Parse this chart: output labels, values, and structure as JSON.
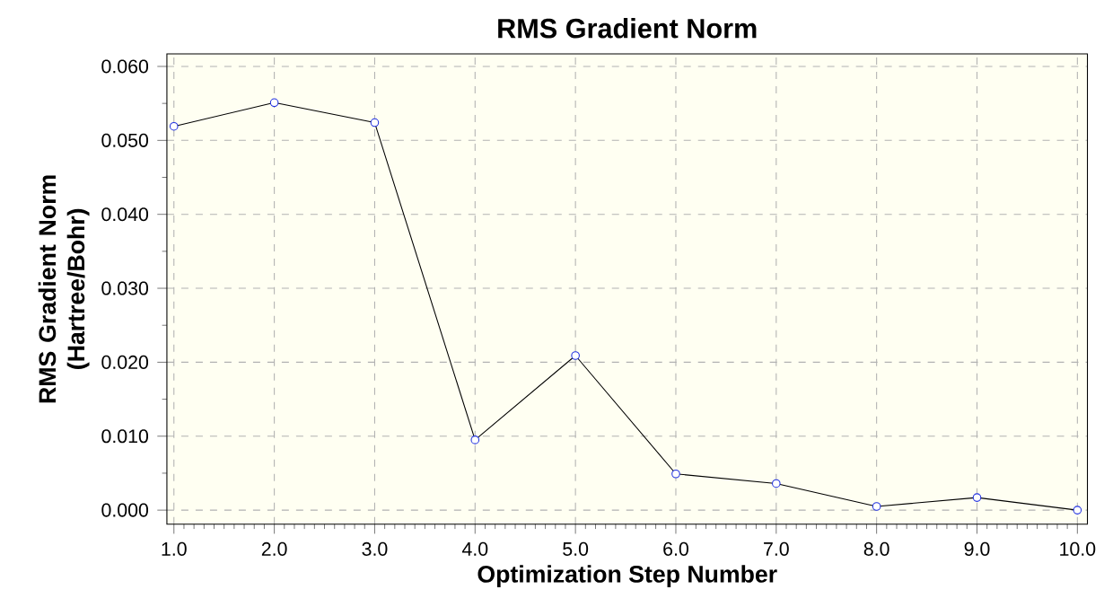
{
  "chart_data": {
    "type": "line",
    "title": "RMS Gradient Norm",
    "xlabel": "Optimization Step Number",
    "ylabel": "RMS Gradient Norm (Hartree/Bohr)",
    "x": [
      1,
      2,
      3,
      4,
      5,
      6,
      7,
      8,
      9,
      10
    ],
    "series": [
      {
        "color": "#000000",
        "values": [
          0.0519,
          0.0551,
          0.0524,
          0.0095,
          0.0209,
          0.0049,
          0.0036,
          0.0005,
          0.0017,
          0.0
        ]
      }
    ],
    "xlim": [
      0.93,
      10.1
    ],
    "ylim": [
      -0.0019,
      0.0617
    ],
    "xticks": [
      {
        "value": 1,
        "label": "1.0"
      },
      {
        "value": 2,
        "label": "2.0"
      },
      {
        "value": 3,
        "label": "3.0"
      },
      {
        "value": 4,
        "label": "4.0"
      },
      {
        "value": 5,
        "label": "5.0"
      },
      {
        "value": 6,
        "label": "6.0"
      },
      {
        "value": 7,
        "label": "7.0"
      },
      {
        "value": 8,
        "label": "8.0"
      },
      {
        "value": 9,
        "label": "9.0"
      },
      {
        "value": 10,
        "label": "10.0"
      }
    ],
    "yticks": [
      {
        "value": 0,
        "label": "0.000"
      },
      {
        "value": 0.01,
        "label": "0.010"
      },
      {
        "value": 0.02,
        "label": "0.020"
      },
      {
        "value": 0.03,
        "label": "0.030"
      },
      {
        "value": 0.04,
        "label": "0.040"
      },
      {
        "value": 0.05,
        "label": "0.050"
      },
      {
        "value": 0.06,
        "label": "0.060"
      }
    ],
    "grid": true,
    "marker": "circle",
    "line_style": "solid"
  }
}
